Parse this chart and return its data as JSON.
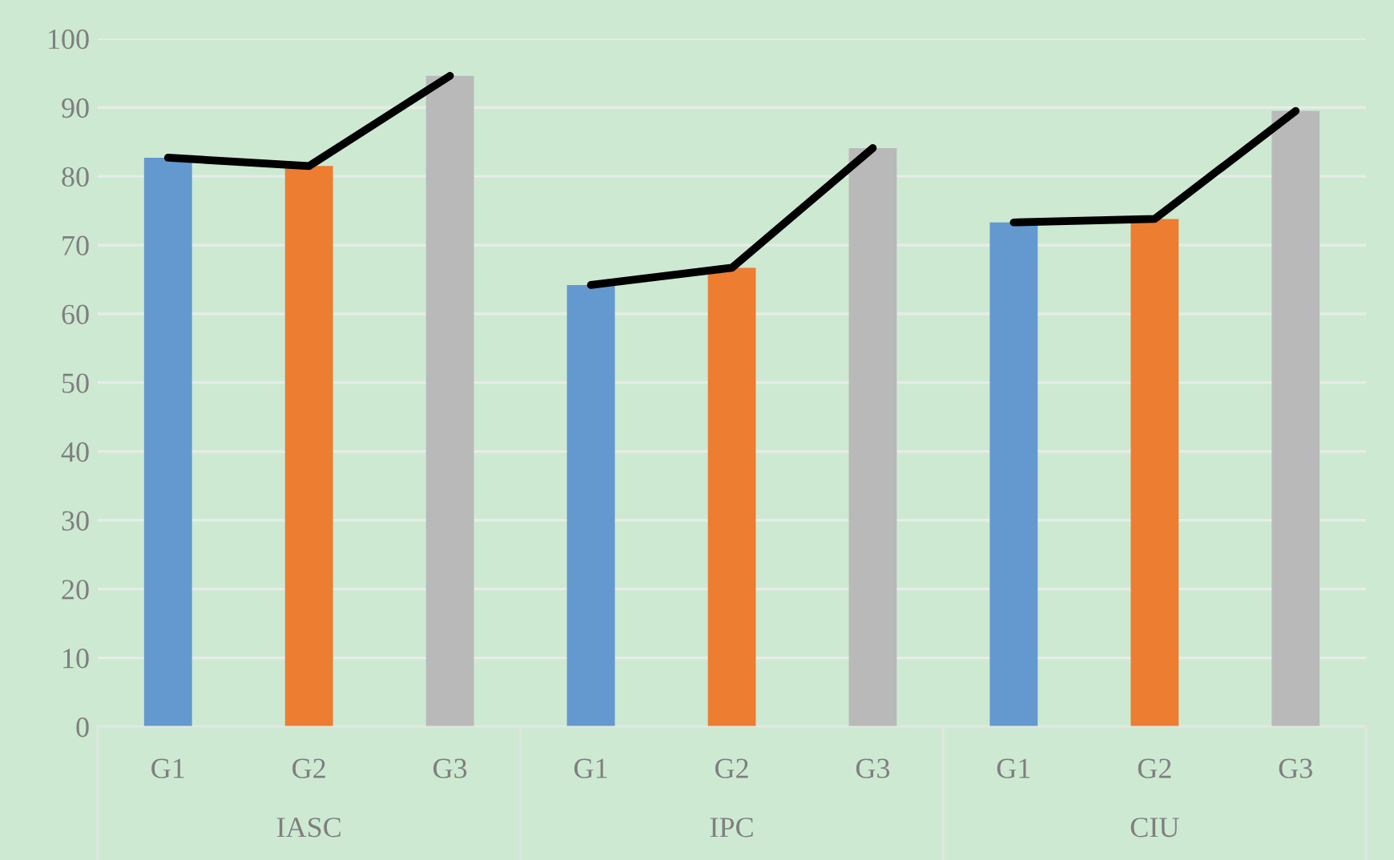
{
  "chart_data": {
    "type": "bar",
    "categories": [
      "G1",
      "G2",
      "G3",
      "G1",
      "G2",
      "G3",
      "G1",
      "G2",
      "G3"
    ],
    "series": [
      {
        "colors": [
          "#6399cf",
          "#ed7d31",
          "#b9b9b9",
          "#6399cf",
          "#ed7d31",
          "#b9b9b9",
          "#6399cf",
          "#ed7d31",
          "#b9b9b9"
        ],
        "values": [
          82.7,
          81.5,
          94.6,
          64.2,
          66.7,
          84.1,
          73.3,
          73.8,
          89.5
        ]
      },
      {
        "type": "line",
        "color": "#000000",
        "values": [
          82.7,
          81.5,
          94.6,
          null,
          null,
          null,
          null,
          null,
          null
        ]
      },
      {
        "type": "line",
        "color": "#000000",
        "values": [
          null,
          null,
          null,
          64.2,
          66.7,
          84.1,
          null,
          null,
          null
        ]
      },
      {
        "type": "line",
        "color": "#000000",
        "values": [
          null,
          null,
          null,
          null,
          null,
          null,
          73.3,
          73.8,
          89.5
        ]
      }
    ],
    "annotations": [
      "IASC",
      "IPC",
      "CIU"
    ],
    "ylim": [
      0,
      100
    ],
    "yticks": [
      0,
      10,
      20,
      30,
      40,
      50,
      60,
      70,
      80,
      90,
      100
    ],
    "grid": "y",
    "legend": false,
    "marker": "none",
    "line_style": "solid"
  }
}
